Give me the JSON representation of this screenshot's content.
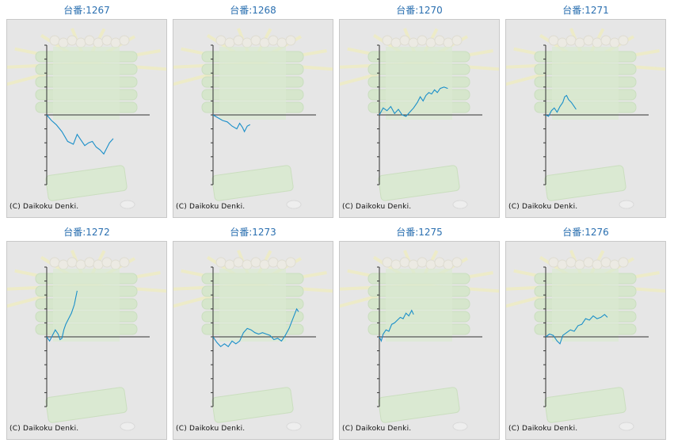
{
  "charts": [
    {
      "title": "台番:1267",
      "copyright": "(C) Daikoku Denki."
    },
    {
      "title": "台番:1268",
      "copyright": "(C) Daikoku Denki."
    },
    {
      "title": "台番:1270",
      "copyright": "(C) Daikoku Denki."
    },
    {
      "title": "台番:1271",
      "copyright": "(C) Daikoku Denki."
    },
    {
      "title": "台番:1272",
      "copyright": "(C) Daikoku Denki."
    },
    {
      "title": "台番:1273",
      "copyright": "(C) Daikoku Denki."
    },
    {
      "title": "台番:1275",
      "copyright": "(C) Daikoku Denki."
    },
    {
      "title": "台番:1276",
      "copyright": "(C) Daikoku Denki."
    }
  ],
  "colors": {
    "line": "#1a8fc9",
    "axis": "#333333",
    "panel": "#e6e6e6",
    "title": "#2a6fb0"
  },
  "chart_data": [
    {
      "type": "line",
      "title": "台番:1267",
      "ylim": [
        -5,
        5
      ],
      "xlim": [
        0,
        1
      ],
      "series": [
        {
          "values": [
            [
              0,
              0
            ],
            [
              0.05,
              -0.4
            ],
            [
              0.1,
              -0.7
            ],
            [
              0.16,
              -1.2
            ],
            [
              0.22,
              -1.9
            ],
            [
              0.28,
              -2.1
            ],
            [
              0.32,
              -1.4
            ],
            [
              0.36,
              -1.8
            ],
            [
              0.4,
              -2.2
            ],
            [
              0.44,
              -2.0
            ],
            [
              0.48,
              -1.9
            ],
            [
              0.52,
              -2.3
            ],
            [
              0.56,
              -2.5
            ],
            [
              0.6,
              -2.8
            ],
            [
              0.63,
              -2.4
            ],
            [
              0.66,
              -2.0
            ],
            [
              0.7,
              -1.7
            ]
          ]
        }
      ]
    },
    {
      "type": "line",
      "title": "台番:1268",
      "ylim": [
        -5,
        5
      ],
      "xlim": [
        0,
        1
      ],
      "series": [
        {
          "values": [
            [
              0,
              0
            ],
            [
              0.05,
              -0.2
            ],
            [
              0.1,
              -0.4
            ],
            [
              0.15,
              -0.5
            ],
            [
              0.2,
              -0.8
            ],
            [
              0.25,
              -1.0
            ],
            [
              0.28,
              -0.6
            ],
            [
              0.31,
              -0.9
            ],
            [
              0.33,
              -1.2
            ],
            [
              0.36,
              -0.8
            ],
            [
              0.39,
              -0.7
            ]
          ]
        }
      ]
    },
    {
      "type": "line",
      "title": "台番:1270",
      "ylim": [
        -5,
        5
      ],
      "xlim": [
        0,
        1
      ],
      "series": [
        {
          "values": [
            [
              0,
              0
            ],
            [
              0.04,
              0.5
            ],
            [
              0.08,
              0.3
            ],
            [
              0.12,
              0.6
            ],
            [
              0.16,
              0.1
            ],
            [
              0.2,
              0.4
            ],
            [
              0.24,
              0.0
            ],
            [
              0.28,
              -0.1
            ],
            [
              0.32,
              0.2
            ],
            [
              0.36,
              0.5
            ],
            [
              0.4,
              0.9
            ],
            [
              0.43,
              1.3
            ],
            [
              0.46,
              1.0
            ],
            [
              0.49,
              1.4
            ],
            [
              0.52,
              1.6
            ],
            [
              0.55,
              1.5
            ],
            [
              0.58,
              1.8
            ],
            [
              0.61,
              1.6
            ],
            [
              0.64,
              1.9
            ],
            [
              0.68,
              2.0
            ],
            [
              0.72,
              1.9
            ]
          ]
        }
      ]
    },
    {
      "type": "line",
      "title": "台番:1271",
      "ylim": [
        -5,
        5
      ],
      "xlim": [
        0,
        1
      ],
      "series": [
        {
          "values": [
            [
              0,
              0
            ],
            [
              0.03,
              -0.1
            ],
            [
              0.06,
              0.3
            ],
            [
              0.09,
              0.5
            ],
            [
              0.12,
              0.2
            ],
            [
              0.15,
              0.6
            ],
            [
              0.18,
              0.9
            ],
            [
              0.2,
              1.3
            ],
            [
              0.22,
              1.4
            ],
            [
              0.24,
              1.1
            ],
            [
              0.27,
              0.9
            ],
            [
              0.3,
              0.6
            ],
            [
              0.32,
              0.4
            ]
          ]
        }
      ]
    },
    {
      "type": "line",
      "title": "台番:1272",
      "ylim": [
        -5,
        5
      ],
      "xlim": [
        0,
        1
      ],
      "series": [
        {
          "values": [
            [
              0,
              0
            ],
            [
              0.03,
              -0.3
            ],
            [
              0.06,
              0.1
            ],
            [
              0.09,
              0.5
            ],
            [
              0.12,
              0.2
            ],
            [
              0.14,
              -0.2
            ],
            [
              0.16,
              -0.1
            ],
            [
              0.18,
              0.5
            ],
            [
              0.2,
              0.9
            ],
            [
              0.23,
              1.3
            ],
            [
              0.26,
              1.7
            ],
            [
              0.29,
              2.3
            ],
            [
              0.32,
              3.3
            ]
          ]
        }
      ]
    },
    {
      "type": "line",
      "title": "台番:1273",
      "ylim": [
        -5,
        5
      ],
      "xlim": [
        0,
        1
      ],
      "series": [
        {
          "values": [
            [
              0,
              0
            ],
            [
              0.04,
              -0.4
            ],
            [
              0.08,
              -0.7
            ],
            [
              0.12,
              -0.5
            ],
            [
              0.16,
              -0.7
            ],
            [
              0.2,
              -0.3
            ],
            [
              0.24,
              -0.5
            ],
            [
              0.28,
              -0.3
            ],
            [
              0.32,
              0.3
            ],
            [
              0.36,
              0.6
            ],
            [
              0.4,
              0.5
            ],
            [
              0.44,
              0.3
            ],
            [
              0.48,
              0.2
            ],
            [
              0.52,
              0.3
            ],
            [
              0.56,
              0.2
            ],
            [
              0.6,
              0.1
            ],
            [
              0.64,
              -0.2
            ],
            [
              0.68,
              -0.1
            ],
            [
              0.72,
              -0.3
            ],
            [
              0.76,
              0.1
            ],
            [
              0.8,
              0.6
            ],
            [
              0.84,
              1.3
            ],
            [
              0.88,
              2.0
            ],
            [
              0.9,
              1.8
            ]
          ]
        }
      ]
    },
    {
      "type": "line",
      "title": "台番:1275",
      "ylim": [
        -5,
        5
      ],
      "xlim": [
        0,
        1
      ],
      "series": [
        {
          "values": [
            [
              0,
              0
            ],
            [
              0.02,
              -0.3
            ],
            [
              0.04,
              0.2
            ],
            [
              0.07,
              0.5
            ],
            [
              0.1,
              0.4
            ],
            [
              0.13,
              0.9
            ],
            [
              0.16,
              1.0
            ],
            [
              0.19,
              1.2
            ],
            [
              0.22,
              1.4
            ],
            [
              0.25,
              1.3
            ],
            [
              0.28,
              1.7
            ],
            [
              0.31,
              1.5
            ],
            [
              0.34,
              1.9
            ],
            [
              0.36,
              1.6
            ]
          ]
        }
      ]
    },
    {
      "type": "line",
      "title": "台番:1276",
      "ylim": [
        -5,
        5
      ],
      "xlim": [
        0,
        1
      ],
      "series": [
        {
          "values": [
            [
              0,
              0
            ],
            [
              0.04,
              0.2
            ],
            [
              0.08,
              0.1
            ],
            [
              0.12,
              -0.3
            ],
            [
              0.15,
              -0.5
            ],
            [
              0.18,
              0.1
            ],
            [
              0.22,
              0.3
            ],
            [
              0.26,
              0.5
            ],
            [
              0.3,
              0.4
            ],
            [
              0.34,
              0.8
            ],
            [
              0.38,
              0.9
            ],
            [
              0.42,
              1.3
            ],
            [
              0.46,
              1.2
            ],
            [
              0.5,
              1.5
            ],
            [
              0.54,
              1.3
            ],
            [
              0.58,
              1.4
            ],
            [
              0.62,
              1.6
            ],
            [
              0.65,
              1.4
            ]
          ]
        }
      ]
    }
  ]
}
